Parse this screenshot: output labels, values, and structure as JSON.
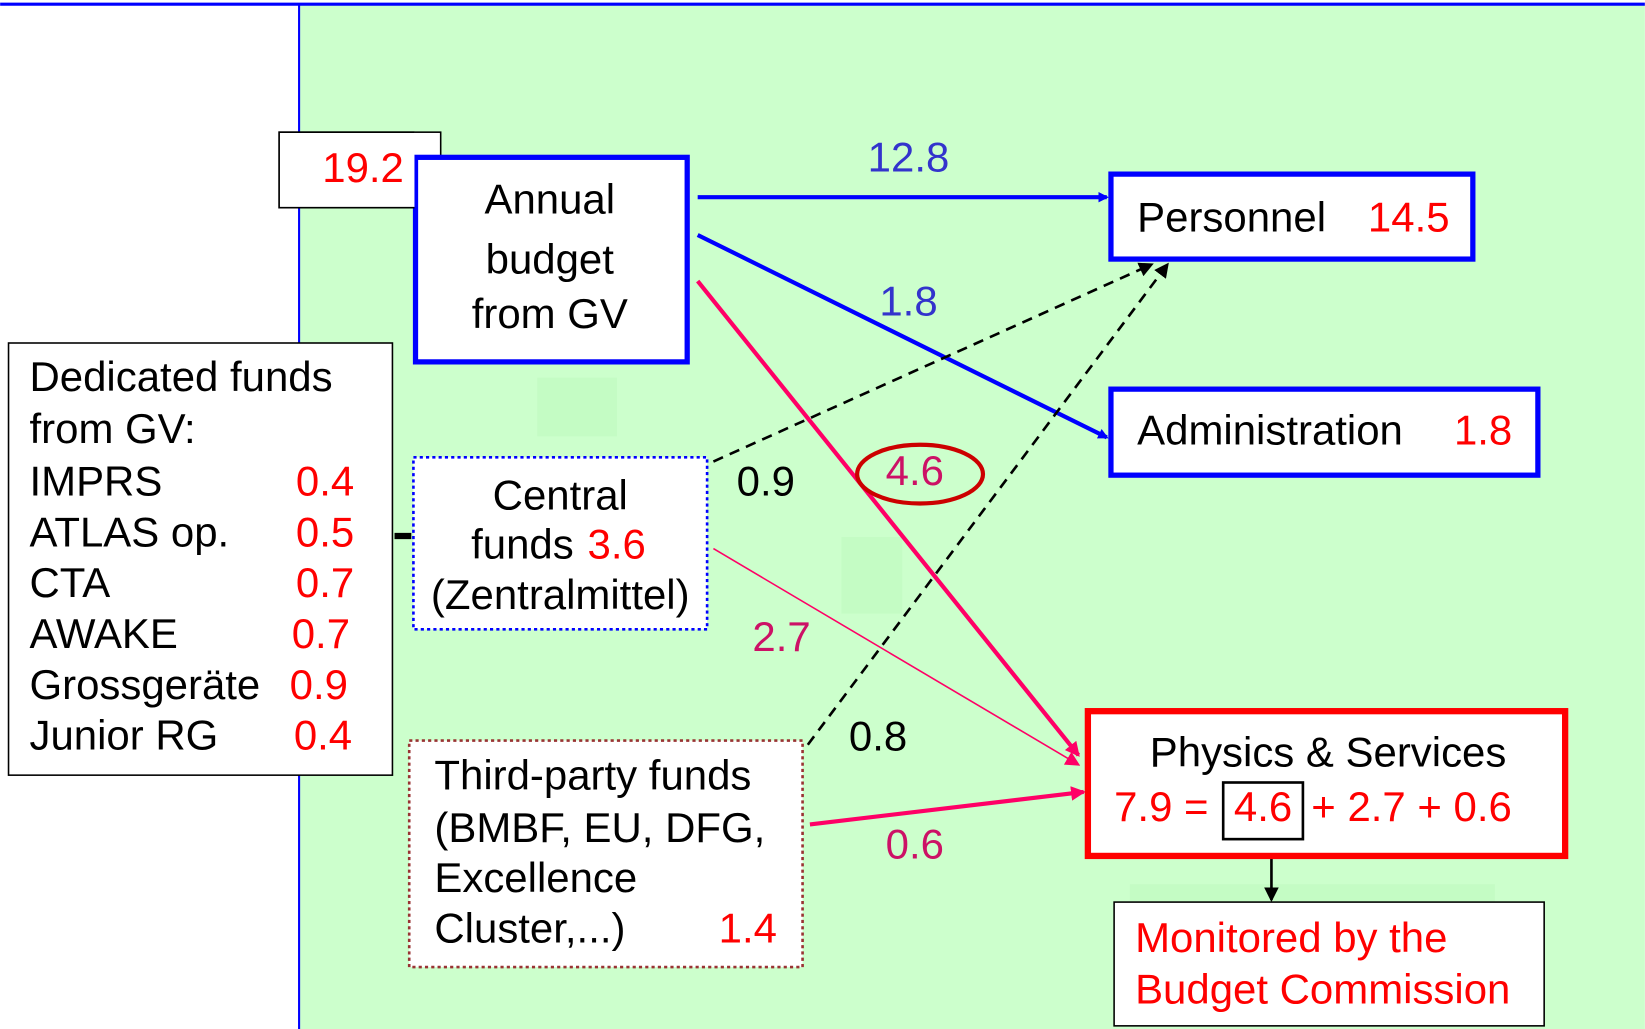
{
  "budget_total": "19.2",
  "annual_budget": {
    "lines": [
      "Annual",
      "budget",
      "from GV"
    ]
  },
  "personnel": {
    "label": "Personnel",
    "value": "14.5"
  },
  "administration": {
    "label": "Administration",
    "value": "1.8"
  },
  "dedicated_funds": {
    "title_lines": [
      "Dedicated funds",
      "from GV:"
    ],
    "items": [
      {
        "name": "IMPRS",
        "value": "0.4"
      },
      {
        "name": "ATLAS op.",
        "value": "0.5"
      },
      {
        "name": "CTA",
        "value": "0.7"
      },
      {
        "name": "AWAKE",
        "value": "0.7"
      },
      {
        "name": "Grossgeräte",
        "value": "0.9"
      },
      {
        "name": "Junior RG",
        "value": "0.4"
      }
    ]
  },
  "central_funds": {
    "line1": "Central",
    "label": "funds",
    "value": "3.6",
    "note": "(Zentralmittel)"
  },
  "third_party_funds": {
    "lines": [
      "Third-party funds",
      "(BMBF, EU, DFG,",
      "Excellence",
      "Cluster,...)"
    ],
    "value": "1.4"
  },
  "physics_services": {
    "label": "Physics & Services",
    "equation": [
      "7.9 =",
      "4.6",
      "+ 2.7 + 0.6"
    ]
  },
  "monitored": {
    "lines": [
      "Monitored by the",
      "Budget Commission"
    ]
  },
  "flows": {
    "to_personnel": "12.8",
    "to_administration": "1.8",
    "to_physics": "4.6",
    "central_to_personnel": "0.9",
    "central_to_physics": "2.7",
    "third_party_to_personnel": "0.8",
    "third_party_to_physics": "0.6"
  }
}
